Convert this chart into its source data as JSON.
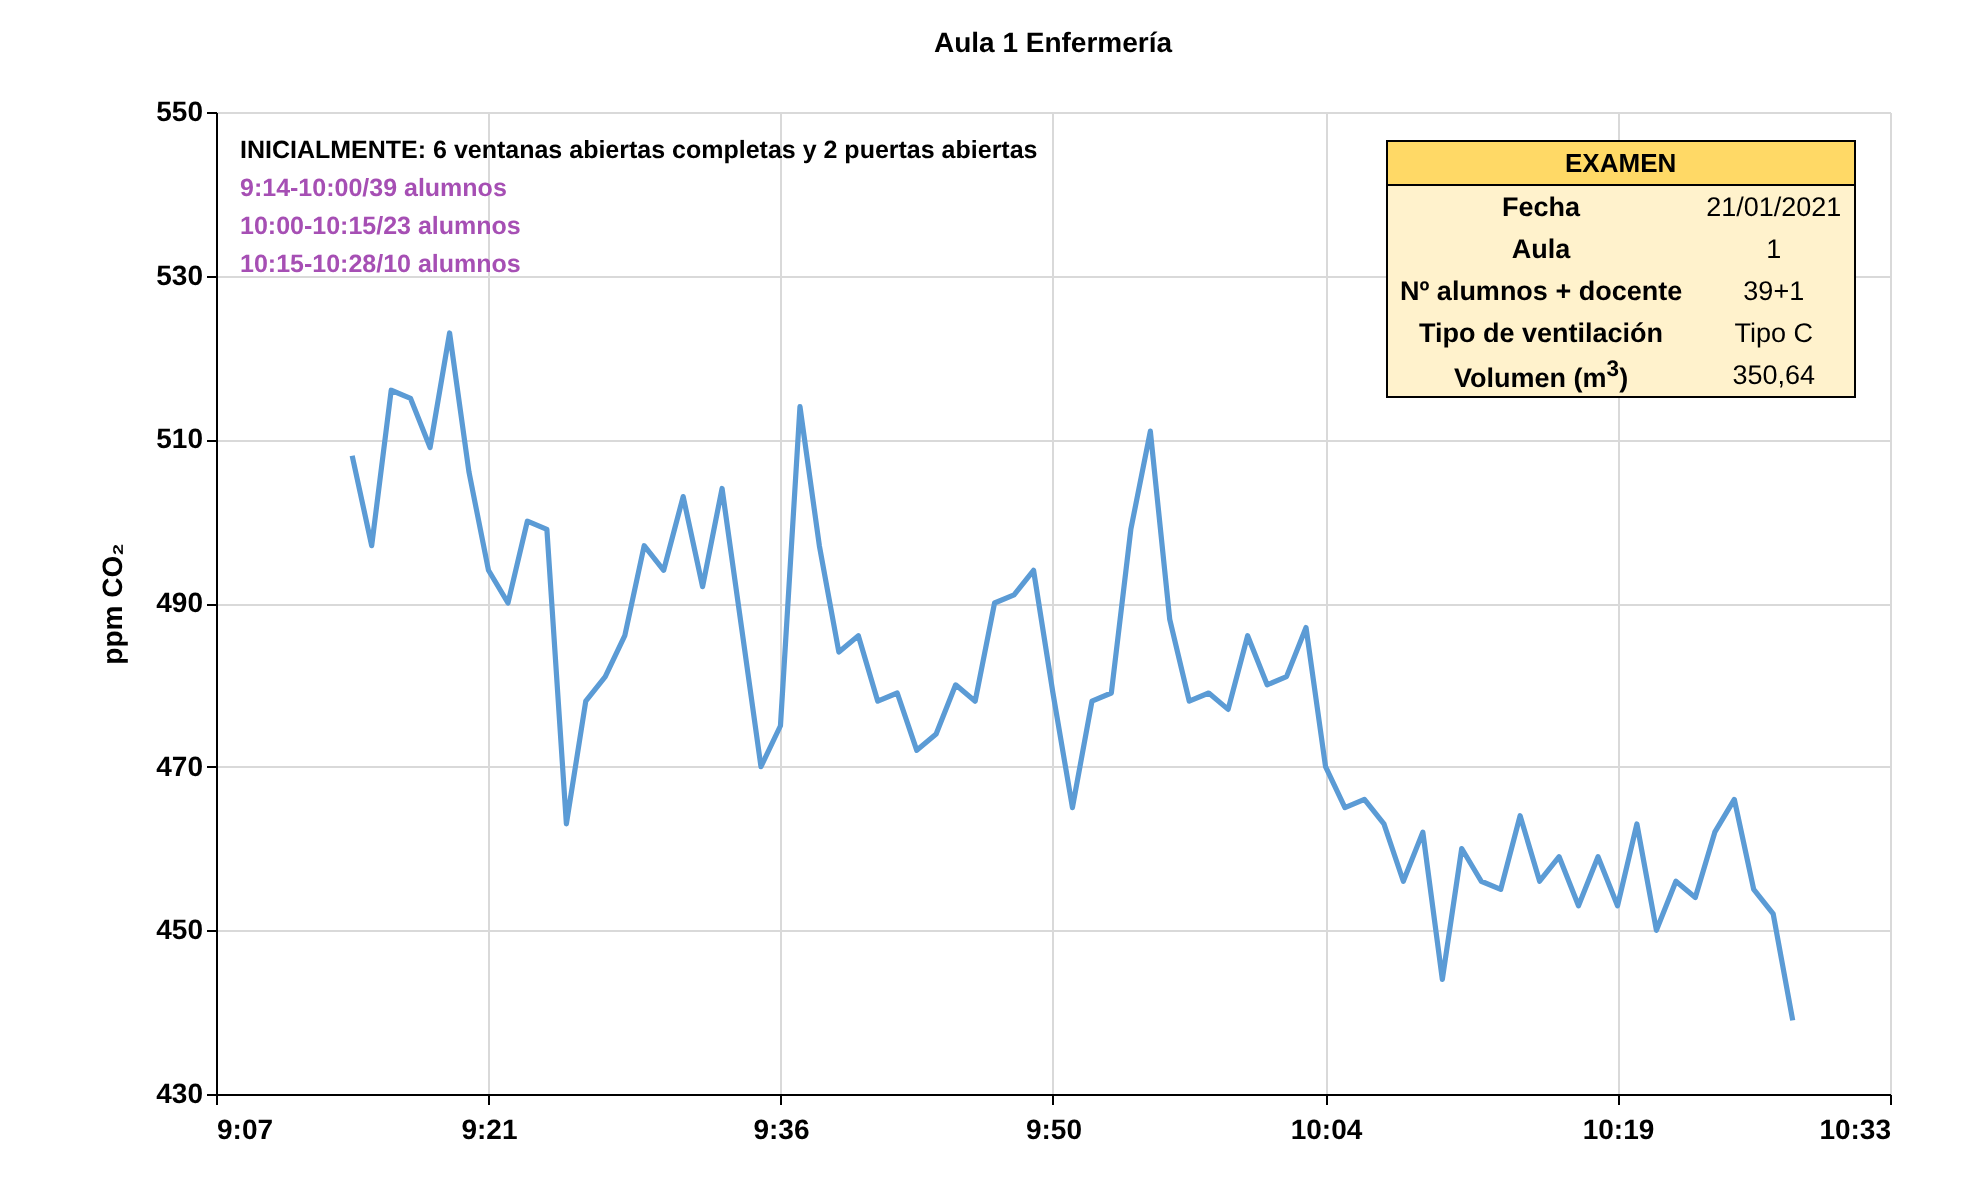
{
  "chart_data": {
    "type": "line",
    "title": "Aula 1 Enfermería",
    "ylabel": "ppm CO₂",
    "annotations": [
      "INICIALMENTE: 6 ventanas abiertas completas y 2 puertas abiertas",
      "9:14-10:00/39 alumnos",
      "10:00-10:15/23 alumnos",
      "10:15-10:28/10 alumnos",
      "EXAMEN",
      "Fecha",
      "21/01/2021",
      "Aula",
      "1",
      "Nº alumnos + docente",
      "39+1",
      "Tipo de ventilación",
      "Tipo C",
      "Volumen (m$^{3}$)",
      "350,64"
    ],
    "x": [
      9.2333,
      9.25,
      9.2667,
      9.2833,
      9.3,
      9.3167,
      9.3333,
      9.35,
      9.3667,
      9.3833,
      9.4,
      9.4167,
      9.4333,
      9.45,
      9.4667,
      9.4833,
      9.5,
      9.5167,
      9.5333,
      9.55,
      9.5667,
      9.5833,
      9.6,
      9.6167,
      9.6333,
      9.65,
      9.6667,
      9.6833,
      9.7,
      9.7167,
      9.7333,
      9.75,
      9.7667,
      9.7833,
      9.8,
      9.8167,
      9.8333,
      9.85,
      9.8667,
      9.8833,
      9.9,
      9.9167,
      9.9333,
      9.95,
      9.9667,
      9.9833,
      10,
      10.0167,
      10.0333,
      10.05,
      10.0667,
      10.0833,
      10.1,
      10.1167,
      10.1333,
      10.15,
      10.1667,
      10.1833,
      10.2,
      10.2167,
      10.2333,
      10.25,
      10.2667,
      10.2833,
      10.3,
      10.3167,
      10.3333,
      10.35,
      10.3667,
      10.3833,
      10.4,
      10.4167,
      10.4333,
      10.45,
      10.4667
    ],
    "series": [
      {
        "color": "#5b9bd5",
        "values": [
          508,
          497,
          516,
          515,
          509,
          523,
          506,
          494,
          490,
          500,
          499,
          463,
          478,
          481,
          486,
          497,
          494,
          503,
          492,
          504,
          487,
          470,
          475,
          514,
          497,
          484,
          486,
          478,
          479,
          472,
          474,
          480,
          478,
          490,
          491,
          494,
          479,
          465,
          478,
          479,
          499,
          511,
          488,
          478,
          479,
          477,
          486,
          480,
          481,
          487,
          470,
          465,
          466,
          463,
          456,
          462,
          444,
          460,
          456,
          455,
          464,
          456,
          459,
          453,
          459,
          453,
          463,
          450,
          456,
          454,
          462,
          466,
          455,
          452,
          439
        ]
      }
    ],
    "xlim": [
      9.1167,
      10.55
    ],
    "xticks": [
      {
        "value": 9.1167,
        "label": "9:07"
      },
      {
        "value": 9.35,
        "label": "9:21"
      },
      {
        "value": 9.6,
        "label": "9:36"
      },
      {
        "value": 9.8333,
        "label": "9:50"
      },
      {
        "value": 10.0667,
        "label": "10:04"
      },
      {
        "value": 10.3167,
        "label": "10:19"
      },
      {
        "value": 10.55,
        "label": "10:33"
      }
    ],
    "ylim": [
      430,
      550
    ],
    "yticks": [
      430,
      450,
      470,
      490,
      510,
      530,
      550
    ],
    "grid": true,
    "marker": "none",
    "line_style": "solid"
  }
}
